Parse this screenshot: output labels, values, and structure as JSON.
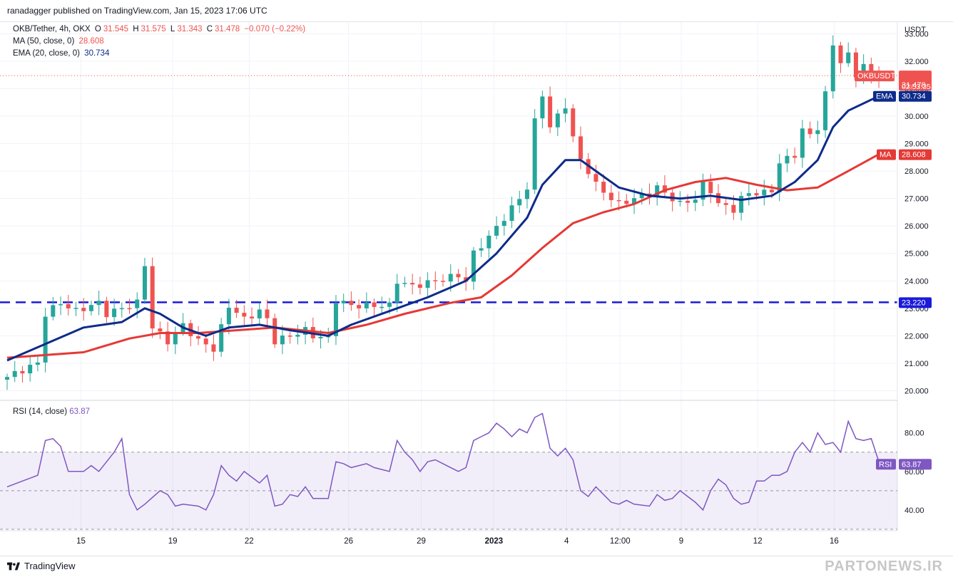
{
  "header": {
    "published": "ranadagger published on TradingView.com, Jan 15, 2023 17:06 UTC"
  },
  "legend": {
    "symbol": "OKB/Tether, 4h, OKX",
    "o_label": "O",
    "o_value": "31.545",
    "h_label": "H",
    "h_value": "31.575",
    "l_label": "L",
    "l_value": "31.343",
    "c_label": "C",
    "c_value": "31.478",
    "change": "−0.070 (−0.22%)",
    "ma_label": "MA (50, close, 0)",
    "ma_value": "28.608",
    "ema_label": "EMA (20, close, 0)",
    "ema_value": "30.734"
  },
  "rsi_legend": {
    "label": "RSI (14, close)",
    "value": "63.87"
  },
  "footer": {
    "logo_text": "TradingView",
    "watermark": "PARTONEWS.IR"
  },
  "colors": {
    "up": "#26a69a",
    "down": "#ef5350",
    "ema": "#0d2b8a",
    "ma": "#e53935",
    "rsi": "#7e57c2",
    "support": "#1a1adb"
  },
  "chart_data": {
    "type": "candlestick",
    "title": "OKB/Tether, 4h, OKX",
    "ylabel": "USDT",
    "ylim": [
      19.7,
      33.4
    ],
    "yticks": [
      "20.000",
      "21.000",
      "22.000",
      "23.000",
      "24.000",
      "25.000",
      "26.000",
      "27.000",
      "28.000",
      "29.000",
      "30.000",
      "31.000",
      "32.000",
      "33.000"
    ],
    "xticks": [
      "15",
      "19",
      "22",
      "26",
      "29",
      "2023",
      "4",
      "12:00",
      "9",
      "12",
      "16"
    ],
    "tags": {
      "price": {
        "label": "OKBUSDT",
        "value": "31.478",
        "countdown": "02:53:35"
      },
      "ema": {
        "label": "EMA",
        "value": "30.734"
      },
      "ma": {
        "label": "MA",
        "value": "28.608"
      },
      "support": {
        "value": "23.220"
      }
    },
    "close_path": [
      [
        0,
        20.5
      ],
      [
        4,
        21.0
      ],
      [
        5,
        22.8
      ],
      [
        7,
        23.2
      ],
      [
        9,
        22.9
      ],
      [
        12,
        23.2
      ],
      [
        13,
        22.8
      ],
      [
        15,
        23.0
      ],
      [
        17,
        23.2
      ],
      [
        18,
        24.6
      ],
      [
        19,
        22.3
      ],
      [
        21,
        21.8
      ],
      [
        23,
        22.4
      ],
      [
        24,
        22.1
      ],
      [
        25,
        21.8
      ],
      [
        26,
        21.7
      ],
      [
        27,
        21.5
      ],
      [
        28,
        22.3
      ],
      [
        29,
        23.1
      ],
      [
        31,
        22.6
      ],
      [
        33,
        22.9
      ],
      [
        34,
        22.6
      ],
      [
        35,
        21.8
      ],
      [
        37,
        22.0
      ],
      [
        39,
        22.2
      ],
      [
        40,
        22.0
      ],
      [
        42,
        21.9
      ],
      [
        43,
        23.3
      ],
      [
        45,
        23.1
      ],
      [
        47,
        23.1
      ],
      [
        50,
        23.1
      ],
      [
        51,
        24.0
      ],
      [
        53,
        23.8
      ],
      [
        56,
        24.0
      ],
      [
        59,
        24.2
      ],
      [
        60,
        24.0
      ],
      [
        61,
        25.0
      ],
      [
        63,
        25.6
      ],
      [
        65,
        26.3
      ],
      [
        67,
        27.0
      ],
      [
        68,
        27.4
      ],
      [
        69,
        29.8
      ],
      [
        70,
        30.8
      ],
      [
        71,
        29.6
      ],
      [
        73,
        30.4
      ],
      [
        74,
        29.2
      ],
      [
        75,
        28.4
      ],
      [
        76,
        28.0
      ],
      [
        77,
        27.5
      ],
      [
        79,
        27.0
      ],
      [
        80,
        26.8
      ],
      [
        82,
        27.0
      ],
      [
        84,
        27.2
      ],
      [
        85,
        27.4
      ],
      [
        86,
        27.2
      ],
      [
        87,
        27.0
      ],
      [
        88,
        26.8
      ],
      [
        90,
        27.0
      ],
      [
        91,
        27.5
      ],
      [
        92,
        27.3
      ],
      [
        93,
        26.8
      ],
      [
        95,
        26.6
      ],
      [
        96,
        27.0
      ],
      [
        97,
        27.2
      ],
      [
        99,
        27.2
      ],
      [
        100,
        27.3
      ],
      [
        101,
        28.3
      ],
      [
        103,
        28.6
      ],
      [
        104,
        29.5
      ],
      [
        105,
        29.3
      ],
      [
        106,
        29.6
      ],
      [
        107,
        30.8
      ],
      [
        108,
        32.6
      ],
      [
        109,
        32.0
      ],
      [
        110,
        32.2
      ],
      [
        111,
        31.5
      ],
      [
        112,
        31.9
      ],
      [
        113,
        31.4
      ],
      [
        114,
        31.48
      ]
    ],
    "ema_path": [
      [
        0,
        21.1
      ],
      [
        5,
        21.7
      ],
      [
        10,
        22.3
      ],
      [
        15,
        22.5
      ],
      [
        18,
        23.0
      ],
      [
        20,
        22.8
      ],
      [
        23,
        22.3
      ],
      [
        26,
        22.0
      ],
      [
        29,
        22.3
      ],
      [
        33,
        22.4
      ],
      [
        37,
        22.2
      ],
      [
        42,
        22.0
      ],
      [
        45,
        22.4
      ],
      [
        50,
        22.9
      ],
      [
        55,
        23.4
      ],
      [
        60,
        24.0
      ],
      [
        64,
        25.0
      ],
      [
        68,
        26.3
      ],
      [
        70,
        27.5
      ],
      [
        73,
        28.4
      ],
      [
        75,
        28.4
      ],
      [
        77,
        28.0
      ],
      [
        80,
        27.4
      ],
      [
        84,
        27.1
      ],
      [
        88,
        27.0
      ],
      [
        92,
        27.1
      ],
      [
        96,
        26.95
      ],
      [
        100,
        27.1
      ],
      [
        103,
        27.6
      ],
      [
        106,
        28.4
      ],
      [
        108,
        29.6
      ],
      [
        110,
        30.2
      ],
      [
        114,
        30.73
      ]
    ],
    "ma_path": [
      [
        0,
        21.2
      ],
      [
        10,
        21.4
      ],
      [
        16,
        21.9
      ],
      [
        20,
        22.1
      ],
      [
        25,
        22.1
      ],
      [
        30,
        22.2
      ],
      [
        35,
        22.3
      ],
      [
        42,
        22.1
      ],
      [
        47,
        22.4
      ],
      [
        52,
        22.8
      ],
      [
        58,
        23.2
      ],
      [
        62,
        23.4
      ],
      [
        66,
        24.2
      ],
      [
        70,
        25.2
      ],
      [
        74,
        26.1
      ],
      [
        78,
        26.5
      ],
      [
        82,
        26.8
      ],
      [
        86,
        27.3
      ],
      [
        90,
        27.6
      ],
      [
        94,
        27.75
      ],
      [
        98,
        27.5
      ],
      [
        102,
        27.3
      ],
      [
        106,
        27.4
      ],
      [
        110,
        28.0
      ],
      [
        114,
        28.61
      ]
    ],
    "rsi": {
      "label": "RSI (14, close)",
      "ylim": [
        30,
        95
      ],
      "yticks": [
        "40.00",
        "60.00",
        "80.00"
      ],
      "band": [
        30,
        70
      ],
      "current": "63.87",
      "path": [
        [
          0,
          52
        ],
        [
          2,
          55
        ],
        [
          4,
          58
        ],
        [
          5,
          76
        ],
        [
          6,
          77
        ],
        [
          7,
          73
        ],
        [
          8,
          60
        ],
        [
          10,
          60
        ],
        [
          11,
          63
        ],
        [
          12,
          60
        ],
        [
          13,
          65
        ],
        [
          14,
          70
        ],
        [
          15,
          77
        ],
        [
          16,
          48
        ],
        [
          17,
          40
        ],
        [
          18,
          43
        ],
        [
          20,
          50
        ],
        [
          21,
          48
        ],
        [
          22,
          42
        ],
        [
          23,
          43
        ],
        [
          25,
          42
        ],
        [
          26,
          40
        ],
        [
          27,
          48
        ],
        [
          28,
          63
        ],
        [
          29,
          58
        ],
        [
          30,
          55
        ],
        [
          31,
          60
        ],
        [
          32,
          57
        ],
        [
          33,
          54
        ],
        [
          34,
          58
        ],
        [
          35,
          42
        ],
        [
          36,
          43
        ],
        [
          37,
          48
        ],
        [
          38,
          47
        ],
        [
          39,
          52
        ],
        [
          40,
          46
        ],
        [
          42,
          46
        ],
        [
          43,
          65
        ],
        [
          44,
          64
        ],
        [
          45,
          62
        ],
        [
          46,
          63
        ],
        [
          47,
          64
        ],
        [
          48,
          62
        ],
        [
          50,
          60
        ],
        [
          51,
          76
        ],
        [
          52,
          70
        ],
        [
          53,
          66
        ],
        [
          54,
          60
        ],
        [
          55,
          65
        ],
        [
          56,
          66
        ],
        [
          57,
          64
        ],
        [
          58,
          62
        ],
        [
          59,
          60
        ],
        [
          60,
          62
        ],
        [
          61,
          76
        ],
        [
          62,
          78
        ],
        [
          63,
          80
        ],
        [
          64,
          85
        ],
        [
          65,
          82
        ],
        [
          66,
          78
        ],
        [
          67,
          82
        ],
        [
          68,
          80
        ],
        [
          69,
          88
        ],
        [
          70,
          90
        ],
        [
          71,
          72
        ],
        [
          72,
          68
        ],
        [
          73,
          72
        ],
        [
          74,
          66
        ],
        [
          75,
          50
        ],
        [
          76,
          47
        ],
        [
          77,
          52
        ],
        [
          78,
          48
        ],
        [
          79,
          44
        ],
        [
          80,
          43
        ],
        [
          81,
          45
        ],
        [
          82,
          43
        ],
        [
          84,
          42
        ],
        [
          85,
          48
        ],
        [
          86,
          45
        ],
        [
          87,
          46
        ],
        [
          88,
          50
        ],
        [
          89,
          47
        ],
        [
          90,
          44
        ],
        [
          91,
          40
        ],
        [
          92,
          50
        ],
        [
          93,
          56
        ],
        [
          94,
          53
        ],
        [
          95,
          46
        ],
        [
          96,
          43
        ],
        [
          97,
          44
        ],
        [
          98,
          55
        ],
        [
          99,
          55
        ],
        [
          100,
          58
        ],
        [
          101,
          58
        ],
        [
          102,
          60
        ],
        [
          103,
          70
        ],
        [
          104,
          75
        ],
        [
          105,
          70
        ],
        [
          106,
          80
        ],
        [
          107,
          74
        ],
        [
          108,
          75
        ],
        [
          109,
          70
        ],
        [
          110,
          86
        ],
        [
          111,
          77
        ],
        [
          112,
          76
        ],
        [
          113,
          77
        ],
        [
          114,
          65
        ],
        [
          115,
          64
        ],
        [
          116,
          63.9
        ]
      ]
    }
  }
}
